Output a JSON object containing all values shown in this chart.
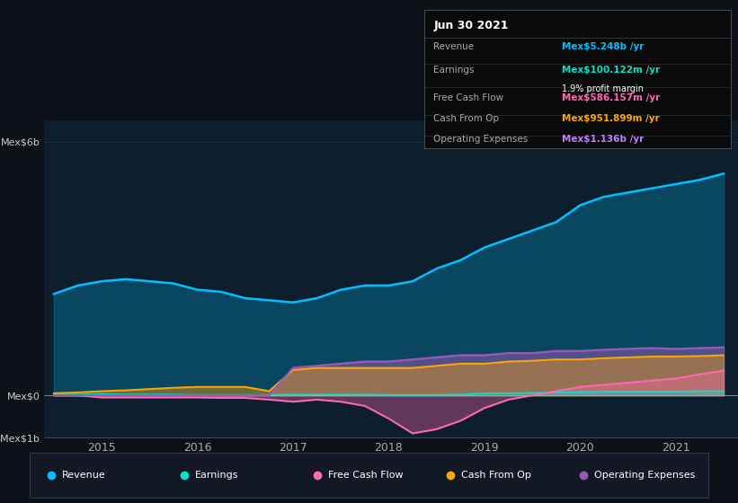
{
  "bg_color": "#0d1117",
  "plot_bg_color": "#0d1f2d",
  "title": "Jun 30 2021",
  "x": [
    2014.5,
    2014.75,
    2015.0,
    2015.25,
    2015.5,
    2015.75,
    2016.0,
    2016.25,
    2016.5,
    2016.75,
    2017.0,
    2017.25,
    2017.5,
    2017.75,
    2018.0,
    2018.25,
    2018.5,
    2018.75,
    2019.0,
    2019.25,
    2019.5,
    2019.75,
    2020.0,
    2020.25,
    2020.5,
    2020.75,
    2021.0,
    2021.25,
    2021.5
  ],
  "revenue": [
    2.4,
    2.6,
    2.7,
    2.75,
    2.7,
    2.65,
    2.5,
    2.45,
    2.3,
    2.25,
    2.2,
    2.3,
    2.5,
    2.6,
    2.6,
    2.7,
    3.0,
    3.2,
    3.5,
    3.7,
    3.9,
    4.1,
    4.5,
    4.7,
    4.8,
    4.9,
    5.0,
    5.1,
    5.248
  ],
  "earnings": [
    0.02,
    0.02,
    0.03,
    0.02,
    0.02,
    0.02,
    0.01,
    0.01,
    0.01,
    0.01,
    0.02,
    0.02,
    0.02,
    0.02,
    0.01,
    0.01,
    0.01,
    0.02,
    0.05,
    0.05,
    0.06,
    0.07,
    0.08,
    0.09,
    0.09,
    0.09,
    0.09,
    0.1,
    0.1
  ],
  "free_cash_flow": [
    0.0,
    0.0,
    -0.05,
    -0.05,
    -0.05,
    -0.05,
    -0.05,
    -0.06,
    -0.06,
    -0.1,
    -0.15,
    -0.1,
    -0.15,
    -0.25,
    -0.55,
    -0.9,
    -0.8,
    -0.6,
    -0.3,
    -0.1,
    0.0,
    0.1,
    0.2,
    0.25,
    0.3,
    0.35,
    0.4,
    0.5,
    0.586
  ],
  "cash_from_op": [
    0.05,
    0.07,
    0.1,
    0.12,
    0.15,
    0.18,
    0.2,
    0.2,
    0.2,
    0.1,
    0.6,
    0.65,
    0.65,
    0.65,
    0.65,
    0.65,
    0.7,
    0.75,
    0.75,
    0.8,
    0.82,
    0.85,
    0.85,
    0.88,
    0.9,
    0.92,
    0.92,
    0.93,
    0.952
  ],
  "operating_expenses": [
    0.0,
    0.0,
    0.0,
    0.0,
    0.0,
    0.0,
    0.0,
    0.0,
    0.0,
    0.0,
    0.65,
    0.7,
    0.75,
    0.8,
    0.8,
    0.85,
    0.9,
    0.95,
    0.95,
    1.0,
    1.0,
    1.05,
    1.05,
    1.08,
    1.1,
    1.12,
    1.1,
    1.12,
    1.136
  ],
  "ylim": [
    -1.0,
    6.5
  ],
  "grid_color": "#1e3a4a",
  "revenue_color": "#00bfff",
  "earnings_color": "#00e5cc",
  "free_cash_flow_color": "#ff69b4",
  "cash_from_op_color": "#ffa500",
  "operating_expenses_color": "#9b59b6"
}
